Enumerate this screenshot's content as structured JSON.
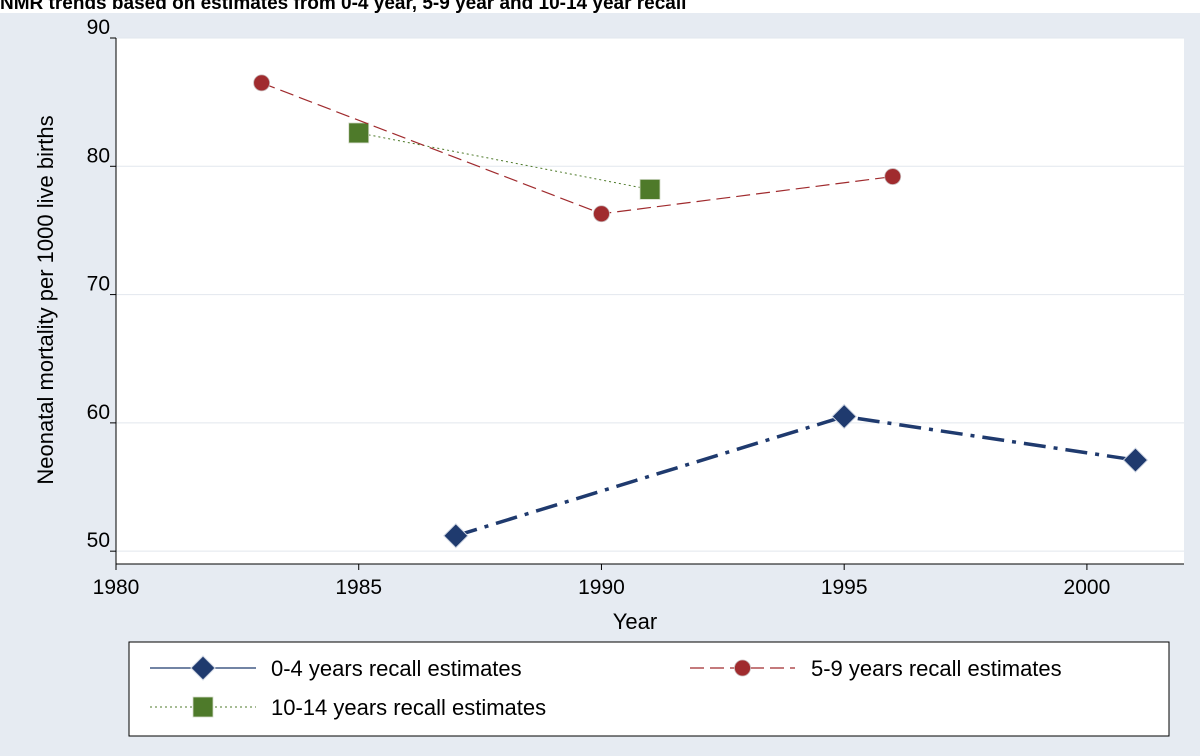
{
  "chart_data": {
    "type": "line",
    "title": "NMR trends based on estimates from 0-4 year, 5-9 year and 10-14 year recall",
    "xlabel": "Year",
    "ylabel": "Neonatal mortality per 1000 live births",
    "xlim": [
      1980,
      2002
    ],
    "ylim": [
      49,
      90
    ],
    "x_ticks": [
      1980,
      1985,
      1990,
      1995,
      2000
    ],
    "y_ticks": [
      50,
      60,
      70,
      80,
      90
    ],
    "grid": "horizontal",
    "legend_position": "bottom",
    "series": [
      {
        "name": "0-4 years recall estimates",
        "color": "#1f3a6e",
        "marker": "diamond",
        "line_style": "dash-dot",
        "legend_line_style": "solid",
        "points": [
          {
            "x": 1987,
            "y": 51.2
          },
          {
            "x": 1995,
            "y": 60.5
          },
          {
            "x": 2001,
            "y": 57.1
          }
        ]
      },
      {
        "name": "5-9 years recall estimates",
        "color": "#a02b2e",
        "marker": "circle",
        "line_style": "dashed",
        "points": [
          {
            "x": 1983,
            "y": 86.5
          },
          {
            "x": 1990,
            "y": 76.3
          },
          {
            "x": 1996,
            "y": 79.2
          }
        ]
      },
      {
        "name": "10-14 years recall estimates",
        "color": "#4e7a2a",
        "marker": "square",
        "line_style": "dotted",
        "points": [
          {
            "x": 1985,
            "y": 82.6
          },
          {
            "x": 1991,
            "y": 78.2
          }
        ]
      }
    ]
  },
  "colors": {
    "background": "#e6ebf2",
    "plot_background": "#ffffff",
    "gridline": "#e2e7ee"
  }
}
